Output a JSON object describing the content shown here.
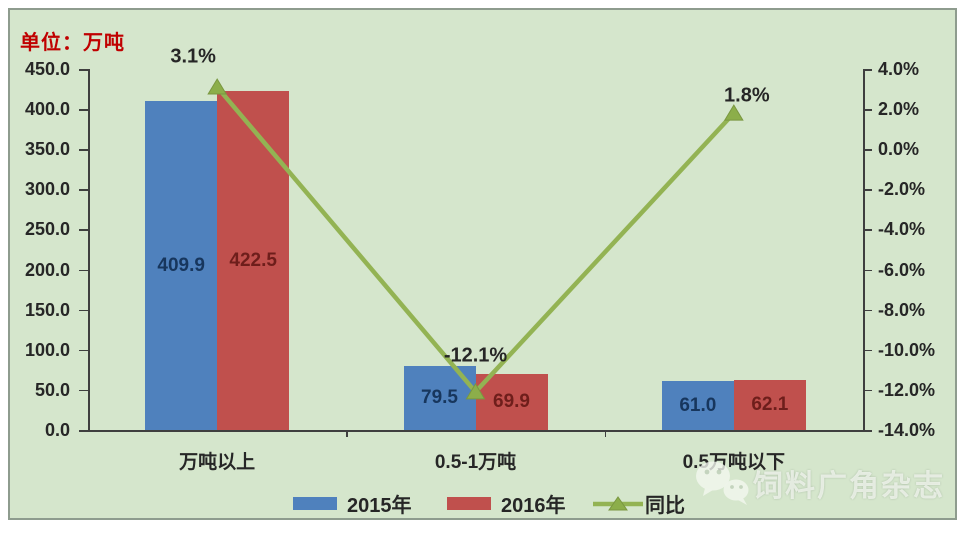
{
  "chart_data": {
    "type": "bar+line",
    "unit_label": "单位：万吨",
    "categories": [
      "万吨以上",
      "0.5-1万吨",
      "0.5万吨以下"
    ],
    "series": [
      {
        "name": "2015年",
        "type": "bar",
        "color": "#4f81bd",
        "label_color": "#17365d",
        "values": [
          409.9,
          79.5,
          61.0
        ],
        "value_labels": [
          "409.9",
          "79.5",
          "61.0"
        ]
      },
      {
        "name": "2016年",
        "type": "bar",
        "color": "#c0504d",
        "label_color": "#6e1e1b",
        "values": [
          422.5,
          69.9,
          62.1
        ],
        "value_labels": [
          "422.5",
          "69.9",
          "62.1"
        ]
      }
    ],
    "line_series": {
      "name": "同比",
      "color": "#93b353",
      "marker_color": "#8cae4a",
      "values_pct": [
        3.1,
        -12.1,
        1.8
      ],
      "point_labels": [
        "3.1%",
        "-12.1%",
        "1.8%"
      ]
    },
    "left_axis": {
      "min": 0,
      "max": 450,
      "tick_labels": [
        "450.0",
        "400.0",
        "350.0",
        "300.0",
        "250.0",
        "200.0",
        "150.0",
        "100.0",
        "50.0",
        "0.0"
      ]
    },
    "right_axis": {
      "min": -14,
      "max": 4,
      "tick_labels": [
        "4.0%",
        "2.0%",
        "0.0%",
        "-2.0%",
        "-4.0%",
        "-6.0%",
        "-8.0%",
        "-10.0%",
        "-12.0%",
        "-14.0%"
      ]
    },
    "legend": [
      "2015年",
      "2016年",
      "同比"
    ],
    "legend_position": "bottom",
    "grid": false
  },
  "watermark": {
    "text": "饲料广角杂志",
    "icon": "wechat-icon"
  },
  "colors": {
    "background": "#d5e6cc",
    "frame_border": "#8e9c8e",
    "axis": "#3f3f3f",
    "text": "#262626",
    "unit_label": "#c00000"
  }
}
